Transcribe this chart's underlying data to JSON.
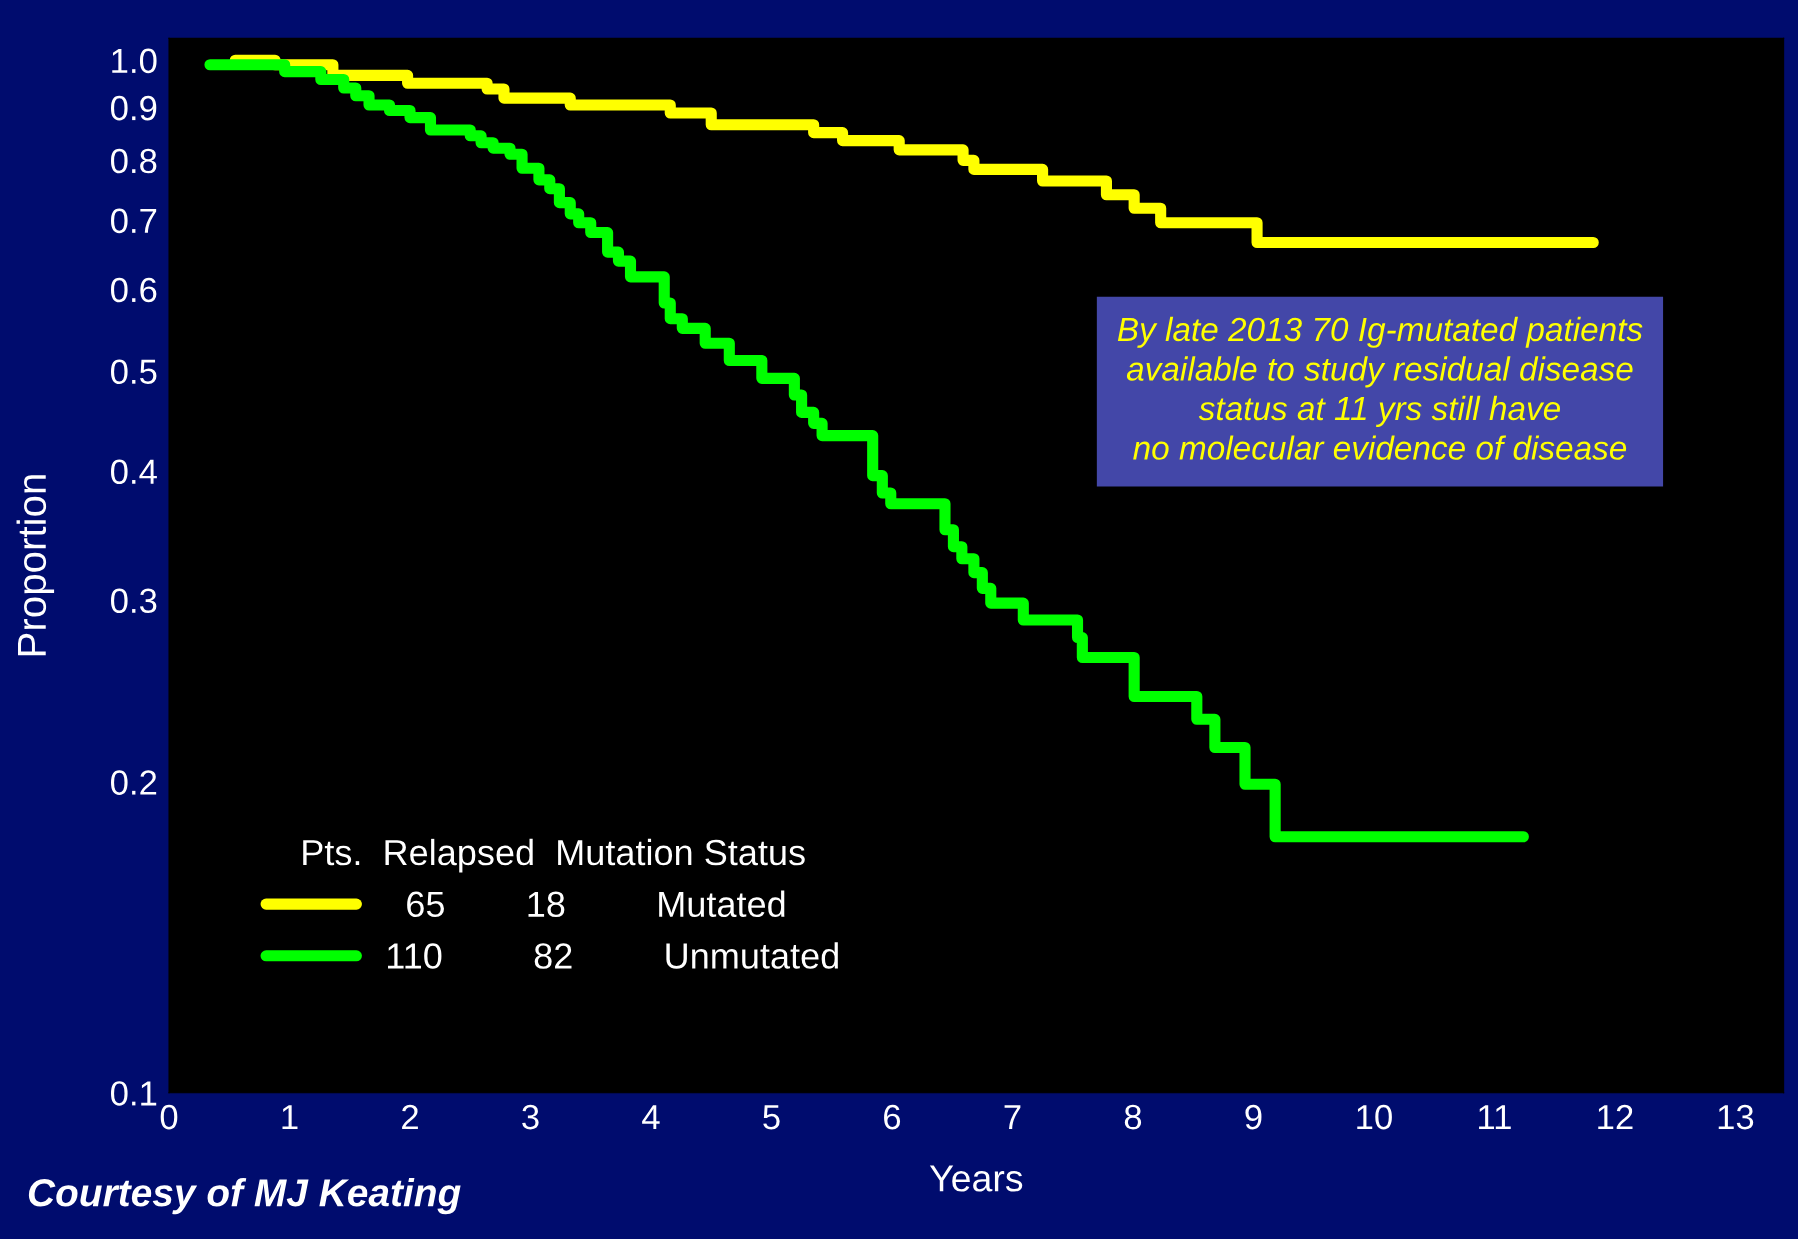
{
  "chart_data": {
    "type": "step",
    "xlabel": "Years",
    "ylabel": "Proportion",
    "log": "y",
    "xlim": [
      0,
      13.4
    ],
    "ylim": [
      0.1,
      1.05
    ],
    "xticks": [
      0,
      1,
      2,
      3,
      4,
      5,
      6,
      7,
      8,
      9,
      10,
      11,
      12,
      13
    ],
    "yticks": [
      {
        "value": 0.1,
        "label": "0.1"
      },
      {
        "value": 0.2,
        "label": "0.2"
      },
      {
        "value": 0.3,
        "label": "0.3"
      },
      {
        "value": 0.4,
        "label": "0.4"
      },
      {
        "value": 0.5,
        "label": "0.5"
      },
      {
        "value": 0.6,
        "label": "0.6"
      },
      {
        "value": 0.7,
        "label": "0.7"
      },
      {
        "value": 0.8,
        "label": "0.8"
      },
      {
        "value": 0.9,
        "label": "0.9"
      },
      {
        "value": 1.0,
        "label": "1.0"
      }
    ],
    "grid": false,
    "legend": "bottom left",
    "legend_title": "Pts.  Relapsed  Mutation Status",
    "line_style": "solid",
    "marker": "none",
    "series": [
      {
        "name": "  65        18         Mutated",
        "color": "#ffff00",
        "x": [
          0.55,
          0.88,
          1.36,
          1.98,
          2.64,
          2.78,
          3.33,
          4.16,
          4.5,
          5.35,
          5.59,
          6.06,
          6.59,
          6.68,
          7.25,
          7.78,
          8.01,
          8.23,
          9.03,
          11.82
        ],
        "values": [
          1.0,
          0.99,
          0.967,
          0.95,
          0.938,
          0.919,
          0.905,
          0.889,
          0.866,
          0.851,
          0.836,
          0.819,
          0.8,
          0.784,
          0.764,
          0.741,
          0.719,
          0.696,
          0.666,
          0.666
        ]
      },
      {
        "name": "110         82         Unmutated",
        "color": "#00ff00",
        "x": [
          0.34,
          0.96,
          1.26,
          1.45,
          1.55,
          1.66,
          1.83,
          2.0,
          2.17,
          2.5,
          2.59,
          2.69,
          2.83,
          2.93,
          3.07,
          3.16,
          3.24,
          3.33,
          3.4,
          3.5,
          3.64,
          3.73,
          3.83,
          4.11,
          4.16,
          4.26,
          4.45,
          4.65,
          4.92,
          5.19,
          5.25,
          5.35,
          5.42,
          5.84,
          5.92,
          5.99,
          6.44,
          6.51,
          6.58,
          6.68,
          6.75,
          6.82,
          7.09,
          7.54,
          7.58,
          8.01,
          8.53,
          8.68,
          8.93,
          9.18,
          11.24
        ],
        "values": [
          0.99,
          0.975,
          0.958,
          0.94,
          0.924,
          0.905,
          0.894,
          0.88,
          0.856,
          0.845,
          0.832,
          0.822,
          0.811,
          0.786,
          0.766,
          0.751,
          0.728,
          0.71,
          0.696,
          0.681,
          0.652,
          0.639,
          0.617,
          0.582,
          0.562,
          0.55,
          0.532,
          0.512,
          0.492,
          0.474,
          0.456,
          0.445,
          0.433,
          0.396,
          0.381,
          0.372,
          0.351,
          0.338,
          0.329,
          0.319,
          0.308,
          0.298,
          0.287,
          0.276,
          0.264,
          0.242,
          0.23,
          0.216,
          0.199,
          0.177,
          0.177
        ]
      }
    ],
    "annotations": [
      "By late 2013 70 Ig-mutated patients\navailable to study residual disease\nstatus at 11 yrs still have\nno molecular evidence of disease",
      "Courtesy of MJ Keating"
    ]
  }
}
